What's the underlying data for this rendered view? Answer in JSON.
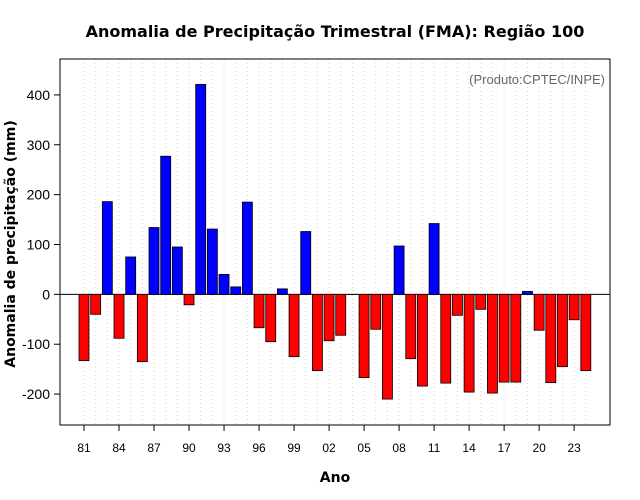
{
  "chart_data": {
    "type": "bar",
    "title": "Anomalia de Precipitação Trimestral (FMA): Região 100",
    "xlabel": "Ano",
    "ylabel": "Anomalia de precipitação (mm)",
    "annotation": "(Produto:CPTEC/INPE)",
    "ylim": [
      -262,
      472
    ],
    "yticks": [
      -200,
      -100,
      0,
      100,
      200,
      300,
      400
    ],
    "xtick_labels": [
      "81",
      "84",
      "87",
      "90",
      "93",
      "96",
      "99",
      "02",
      "05",
      "08",
      "11",
      "14",
      "17",
      "20",
      "23"
    ],
    "xtick_every": 3,
    "grid": "vertical dotted",
    "colors": {
      "positive": "#0000ff",
      "negative": "#ff0000",
      "zero_line": "#000000",
      "grid": "#d3d3d3"
    },
    "categories": [
      "1981",
      "1982",
      "1983",
      "1984",
      "1985",
      "1986",
      "1987",
      "1988",
      "1989",
      "1990",
      "1991",
      "1992",
      "1993",
      "1994",
      "1995",
      "1996",
      "1997",
      "1998",
      "1999",
      "2000",
      "2001",
      "2002",
      "2003",
      "2004",
      "2005",
      "2006",
      "2007",
      "2008",
      "2009",
      "2010",
      "2011",
      "2012",
      "2013",
      "2014",
      "2015",
      "2016",
      "2017",
      "2018",
      "2019",
      "2020",
      "2021",
      "2022",
      "2023",
      "2024"
    ],
    "values": [
      -133,
      -40,
      186,
      -88,
      75,
      -135,
      134,
      277,
      95,
      -21,
      421,
      131,
      40,
      15,
      185,
      -67,
      -95,
      11,
      -125,
      126,
      -153,
      -93,
      -82,
      0,
      -167,
      -70,
      -210,
      97,
      -129,
      -184,
      142,
      -178,
      -42,
      -196,
      -30,
      -198,
      -176,
      -176,
      6,
      -72,
      -177,
      -145,
      -51,
      -153
    ]
  }
}
